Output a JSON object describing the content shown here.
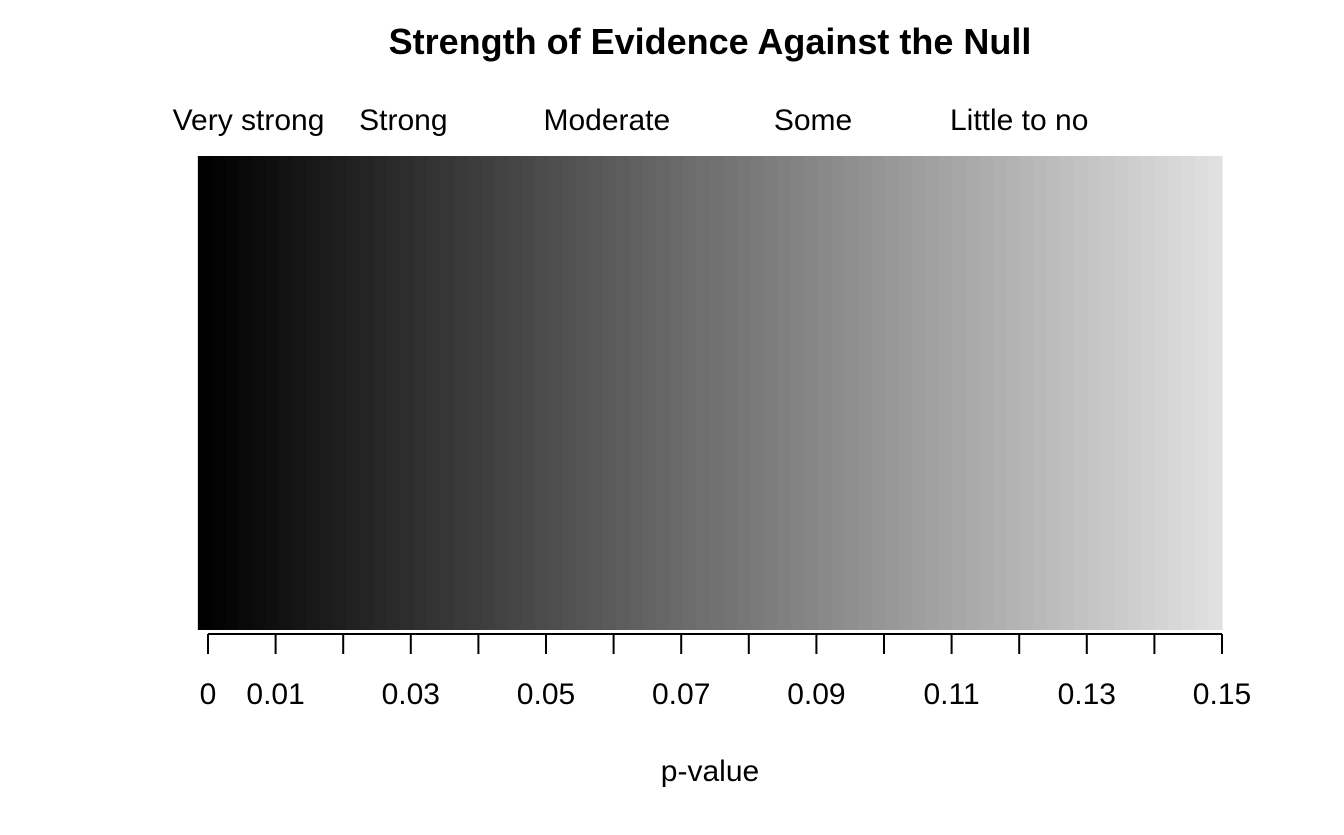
{
  "chart_data": {
    "type": "heatmap",
    "title": "Strength of Evidence Against the Null",
    "xlabel": "p-value",
    "ylabel": "",
    "xlim": [
      -0.0015,
      0.15
    ],
    "grid": false,
    "legend": "none",
    "gradient": {
      "x_start": -0.0015,
      "x_end": 0.15,
      "steps": 76,
      "color_start": "#000000",
      "color_end": "#e0e0e0"
    },
    "ticks": [
      0,
      0.01,
      0.02,
      0.03,
      0.04,
      0.05,
      0.06,
      0.07,
      0.08,
      0.09,
      0.1,
      0.11,
      0.12,
      0.13,
      0.14,
      0.15
    ],
    "tick_labels": [
      {
        "x": 0,
        "label": "0"
      },
      {
        "x": 0.01,
        "label": "0.01"
      },
      {
        "x": 0.03,
        "label": "0.03"
      },
      {
        "x": 0.05,
        "label": "0.05"
      },
      {
        "x": 0.07,
        "label": "0.07"
      },
      {
        "x": 0.09,
        "label": "0.09"
      },
      {
        "x": 0.11,
        "label": "0.11"
      },
      {
        "x": 0.13,
        "label": "0.13"
      },
      {
        "x": 0.15,
        "label": "0.15"
      }
    ],
    "category_labels": [
      {
        "x": 0.006,
        "label": "Very strong"
      },
      {
        "x": 0.0289,
        "label": "Strong"
      },
      {
        "x": 0.059,
        "label": "Moderate"
      },
      {
        "x": 0.0895,
        "label": "Some"
      },
      {
        "x": 0.12,
        "label": "Little to no"
      }
    ]
  }
}
